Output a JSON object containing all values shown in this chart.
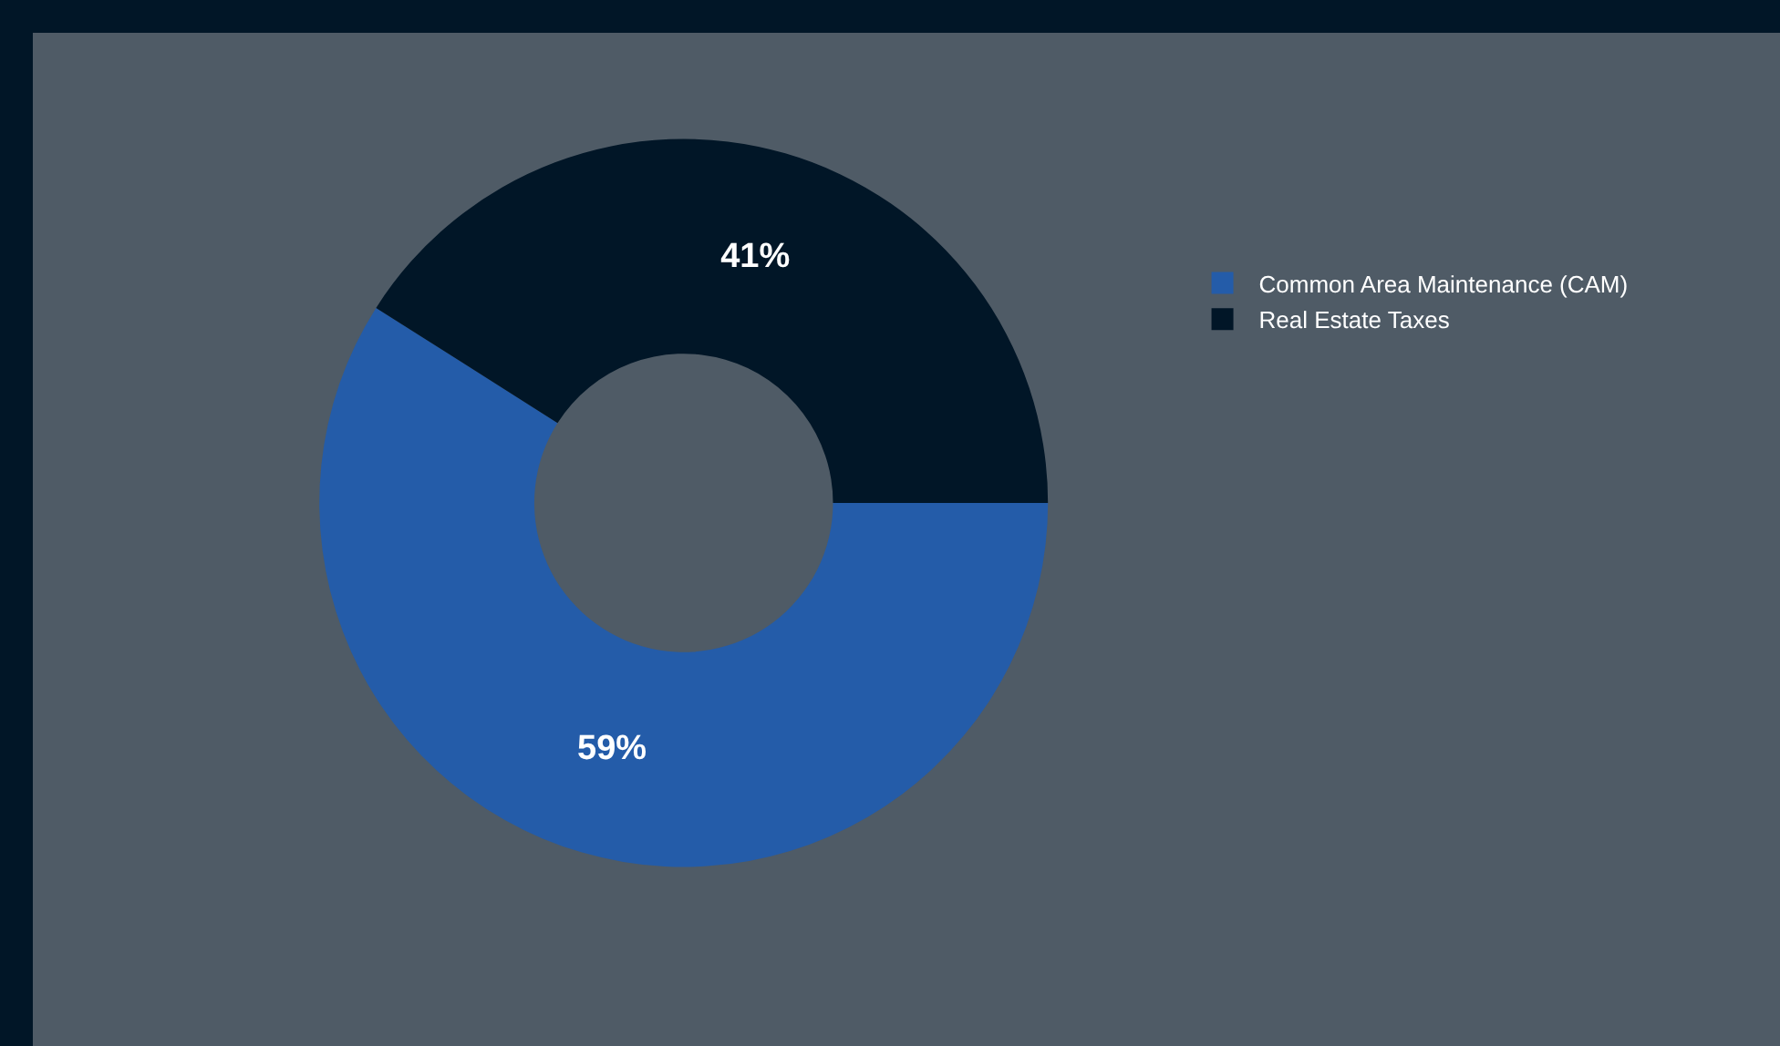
{
  "chart_data": {
    "type": "donut",
    "categories": [
      "Common Area Maintenance (CAM)",
      "Real Estate Taxes"
    ],
    "values": [
      59,
      41
    ],
    "colors": [
      "#245ca9",
      "#011627"
    ],
    "value_labels": [
      "59%",
      "41%"
    ],
    "legend": "right"
  }
}
